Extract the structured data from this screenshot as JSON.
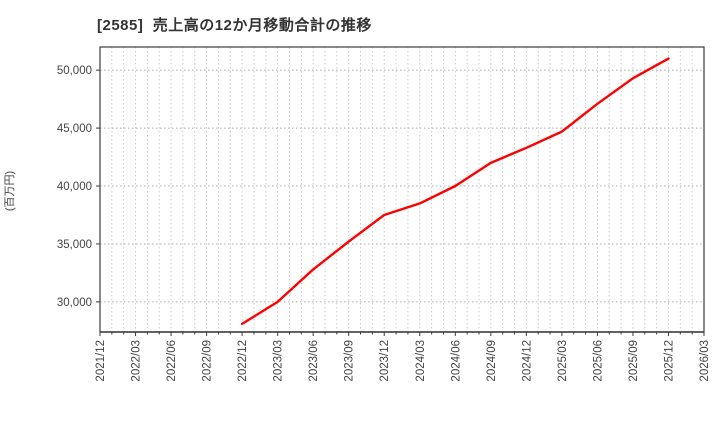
{
  "title": "[2585]  売上高の12か月移動合計の推移",
  "chart_data": {
    "type": "line",
    "title": "[2585]  売上高の12か月移動合計の推移",
    "xlabel": "",
    "ylabel": "(百万円)",
    "x_range": [
      "2021/12",
      "2026/03"
    ],
    "x_tick_labels": [
      "2021/12",
      "2022/03",
      "2022/06",
      "2022/09",
      "2022/12",
      "2023/03",
      "2023/06",
      "2023/09",
      "2023/12",
      "2024/03",
      "2024/06",
      "2024/09",
      "2024/12",
      "2025/03",
      "2025/06",
      "2025/09",
      "2025/12",
      "2026/03"
    ],
    "y_ticks": [
      30000,
      35000,
      40000,
      45000,
      50000
    ],
    "y_tick_labels": [
      "30,000",
      "35,000",
      "40,000",
      "45,000",
      "50,000"
    ],
    "ylim": [
      27400,
      52000
    ],
    "grid": "on",
    "legend": "none",
    "series": [
      {
        "name": "売上高の12か月移動合計",
        "color": "#ff0000",
        "x": [
          "2022/12",
          "2023/03",
          "2023/06",
          "2023/09",
          "2023/12",
          "2024/03",
          "2024/06",
          "2024/09",
          "2024/12",
          "2025/03",
          "2025/06",
          "2025/09",
          "2025/12"
        ],
        "values": [
          28100,
          30000,
          32800,
          35200,
          37500,
          38500,
          40000,
          42000,
          43300,
          44700,
          47100,
          49300,
          51000
        ]
      }
    ],
    "colors": {
      "line": "#ff0000",
      "frame": "#3c3c3c",
      "grid_v": "#c9c9c9",
      "grid_h": "#ababab",
      "tick_text": "#444444",
      "title_text": "#333333"
    }
  }
}
